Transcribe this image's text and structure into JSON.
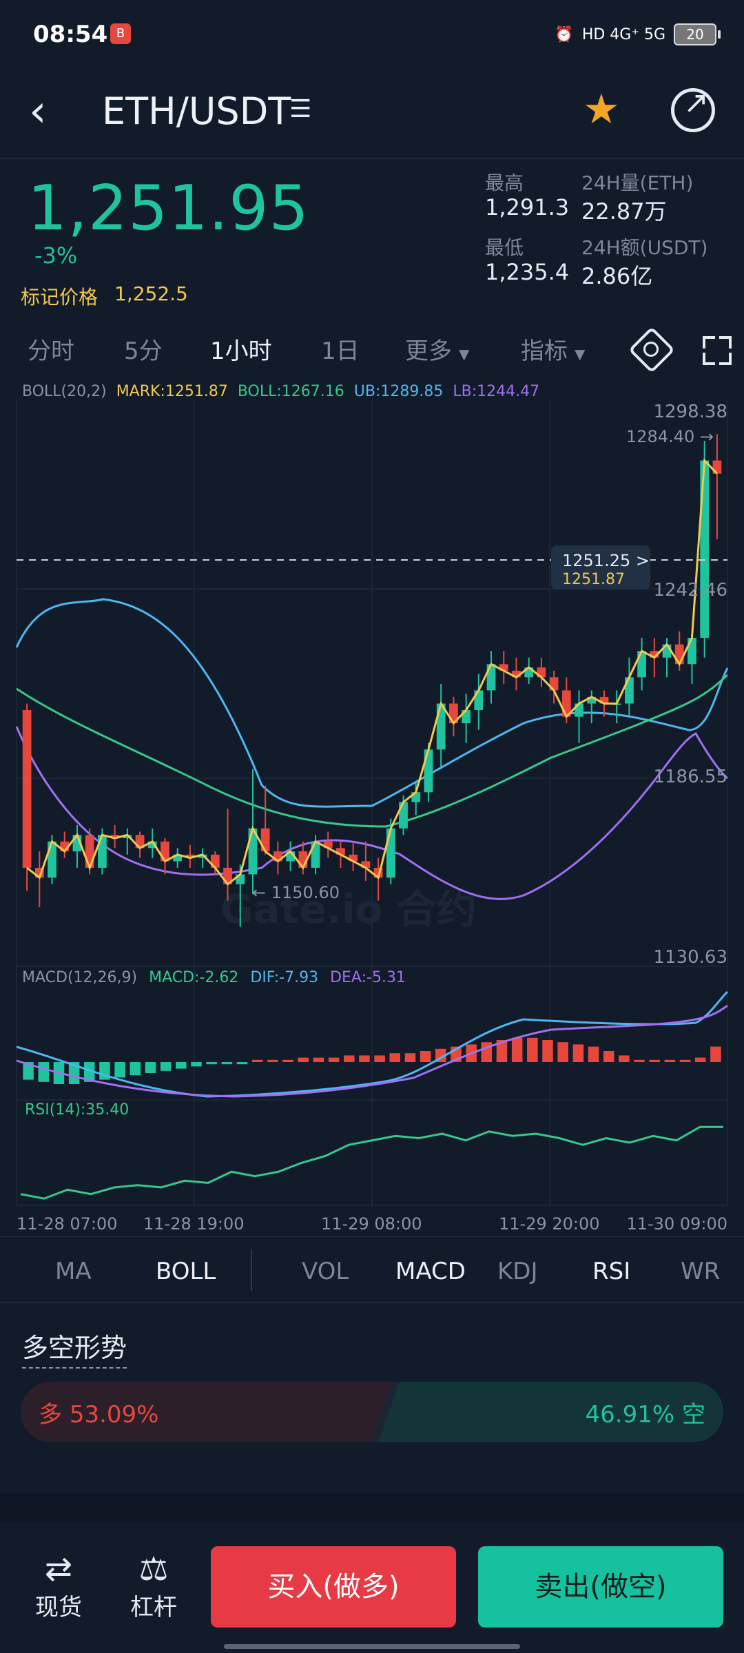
{
  "status_bar": {
    "time": "08:54",
    "signal": "HD 4G⁺ 5G",
    "battery": "20"
  },
  "header": {
    "pair": "ETH/USDT",
    "icons": [
      "back-arrow-icon",
      "menu-icon",
      "star-icon",
      "share-icon"
    ]
  },
  "ticker": {
    "price": "1,251.95",
    "change": "-3%",
    "mark_label": "标记价格",
    "mark_value": "1,252.5",
    "high_label": "最高",
    "high_value": "1,291.3",
    "vol_label": "24H量(ETH)",
    "vol_value": "22.87万",
    "low_label": "最低",
    "low_value": "1,235.4",
    "amount_label": "24H额(USDT)",
    "amount_value": "2.86亿"
  },
  "timeframes": [
    {
      "label": "分时",
      "active": false
    },
    {
      "label": "5分",
      "active": false
    },
    {
      "label": "1小时",
      "active": true
    },
    {
      "label": "1日",
      "active": false
    },
    {
      "label": "更多",
      "active": false
    },
    {
      "label": "指标",
      "active": false
    }
  ],
  "boll_legend": {
    "name": "BOLL(20,2)",
    "mark": "MARK:1251.87",
    "boll": "BOLL:1267.16",
    "ub": "UB:1289.85",
    "lb": "LB:1244.47"
  },
  "macd_legend": {
    "name": "MACD(12,26,9)",
    "macd": "MACD:-2.62",
    "dif": "DIF:-7.93",
    "dea": "DEA:-5.31"
  },
  "rsi_legend": "RSI(14):35.40",
  "chart_labels": {
    "y_max": "1298.38",
    "y_mid1": "1242.46",
    "y_mid2": "1186.55",
    "y_min": "1130.63",
    "high_note": "1284.40 →",
    "low_note": "← 1150.60",
    "last_price": "1251.25 >",
    "mark_price": "1251.87",
    "watermark": "Gate.io 合约"
  },
  "chart_data": {
    "type": "candlestick",
    "x_ticks": [
      "11-28 07:00",
      "11-28 19:00",
      "11-29 08:00",
      "11-29 20:00",
      "11-30 09:00"
    ],
    "y_ticks": [
      1298.38,
      1242.46,
      1186.55,
      1130.63
    ],
    "ylim": [
      1130.63,
      1298.38
    ],
    "candles": [
      [
        1208,
        1210,
        1153,
        1160
      ],
      [
        1160,
        1165,
        1148,
        1157
      ],
      [
        1157,
        1170,
        1155,
        1168
      ],
      [
        1168,
        1171,
        1163,
        1165
      ],
      [
        1165,
        1173,
        1160,
        1170
      ],
      [
        1170,
        1172,
        1158,
        1160
      ],
      [
        1160,
        1172,
        1158,
        1170
      ],
      [
        1170,
        1173,
        1166,
        1169
      ],
      [
        1169,
        1172,
        1164,
        1170
      ],
      [
        1170,
        1171,
        1163,
        1166
      ],
      [
        1166,
        1172,
        1163,
        1168
      ],
      [
        1168,
        1169,
        1158,
        1162
      ],
      [
        1162,
        1166,
        1160,
        1164
      ],
      [
        1164,
        1167,
        1160,
        1163
      ],
      [
        1163,
        1166,
        1160,
        1164
      ],
      [
        1164,
        1165,
        1158,
        1160
      ],
      [
        1160,
        1178,
        1150,
        1155
      ],
      [
        1155,
        1161,
        1142,
        1158
      ],
      [
        1158,
        1190,
        1152,
        1172
      ],
      [
        1172,
        1185,
        1164,
        1165
      ],
      [
        1165,
        1168,
        1158,
        1162
      ],
      [
        1162,
        1168,
        1159,
        1165
      ],
      [
        1165,
        1168,
        1158,
        1160
      ],
      [
        1160,
        1170,
        1158,
        1168
      ],
      [
        1168,
        1171,
        1163,
        1166
      ],
      [
        1166,
        1168,
        1160,
        1164
      ],
      [
        1164,
        1168,
        1159,
        1162
      ],
      [
        1162,
        1168,
        1156,
        1160
      ],
      [
        1160,
        1163,
        1150,
        1157
      ],
      [
        1157,
        1175,
        1155,
        1172
      ],
      [
        1172,
        1182,
        1170,
        1180
      ],
      [
        1180,
        1186,
        1176,
        1183
      ],
      [
        1183,
        1198,
        1180,
        1196
      ],
      [
        1196,
        1216,
        1190,
        1210
      ],
      [
        1210,
        1212,
        1200,
        1204
      ],
      [
        1204,
        1213,
        1198,
        1208
      ],
      [
        1208,
        1219,
        1202,
        1214
      ],
      [
        1214,
        1226,
        1210,
        1222
      ],
      [
        1222,
        1226,
        1216,
        1220
      ],
      [
        1220,
        1224,
        1214,
        1218
      ],
      [
        1218,
        1224,
        1216,
        1221
      ],
      [
        1221,
        1224,
        1215,
        1218
      ],
      [
        1218,
        1220,
        1210,
        1214
      ],
      [
        1214,
        1218,
        1204,
        1206
      ],
      [
        1206,
        1214,
        1198,
        1210
      ],
      [
        1210,
        1214,
        1204,
        1212
      ],
      [
        1212,
        1214,
        1206,
        1210
      ],
      [
        1210,
        1214,
        1204,
        1210
      ],
      [
        1210,
        1224,
        1206,
        1218
      ],
      [
        1218,
        1230,
        1214,
        1226
      ],
      [
        1226,
        1230,
        1218,
        1224
      ],
      [
        1224,
        1230,
        1218,
        1228
      ],
      [
        1228,
        1232,
        1220,
        1222
      ],
      [
        1222,
        1230,
        1216,
        1230
      ],
      [
        1230,
        1290,
        1224,
        1284
      ],
      [
        1284,
        1292,
        1260,
        1280
      ]
    ],
    "macd_hist": [
      -8,
      -9,
      -10,
      -10,
      -9,
      -8,
      -7,
      -6,
      -5,
      -4,
      -3,
      -2,
      -1,
      -1,
      -1,
      1,
      1,
      1,
      2,
      2,
      2,
      3,
      3,
      3,
      4,
      4,
      5,
      6,
      7,
      8,
      9,
      10,
      11,
      11,
      10,
      9,
      8,
      7,
      5,
      3,
      1,
      1,
      1,
      1,
      2,
      7
    ],
    "rsi": [
      30,
      28,
      32,
      30,
      33,
      34,
      33,
      36,
      35,
      40,
      38,
      40,
      44,
      47,
      52,
      54,
      56,
      55,
      57,
      54,
      58,
      56,
      57,
      55,
      52,
      55,
      53,
      56,
      54,
      60,
      60
    ]
  },
  "indicators": {
    "main": [
      "MA",
      "BOLL"
    ],
    "sub": [
      "VOL",
      "MACD",
      "KDJ",
      "RSI",
      "WR"
    ],
    "active": [
      "BOLL",
      "MACD",
      "RSI"
    ]
  },
  "long_short": {
    "title": "多空形势",
    "long_label": "多",
    "long_pct": "53.09%",
    "short_label": "空",
    "short_pct": "46.91%"
  },
  "bottom_nav": {
    "spot": "现货",
    "leverage": "杠杆",
    "buy": "买入(做多)",
    "sell": "卖出(做空)"
  },
  "colors": {
    "up": "#1fc3a0",
    "down": "#e8473e",
    "mark": "#f2c94c",
    "boll": "#35c98a",
    "ub": "#4fb6f0",
    "lb": "#a070f0"
  }
}
